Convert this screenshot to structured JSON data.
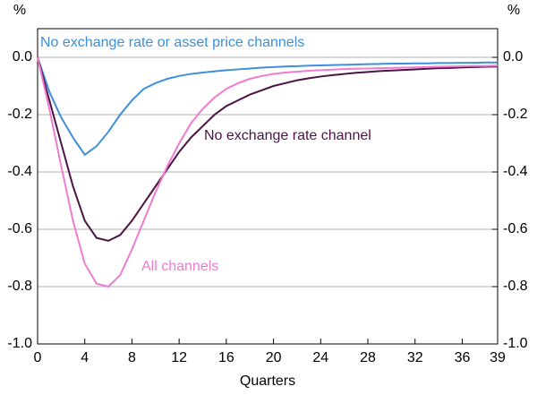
{
  "chart_data": {
    "type": "line",
    "xlabel": "Quarters",
    "ylabel": "%",
    "y2label": "%",
    "x": [
      0,
      1,
      2,
      3,
      4,
      5,
      6,
      7,
      8,
      9,
      10,
      11,
      12,
      13,
      14,
      15,
      16,
      17,
      18,
      19,
      20,
      21,
      22,
      23,
      24,
      25,
      26,
      27,
      28,
      29,
      30,
      31,
      32,
      33,
      34,
      35,
      36,
      37,
      38,
      39
    ],
    "xlim": [
      0,
      39
    ],
    "xticks": [
      0,
      4,
      8,
      12,
      16,
      20,
      24,
      28,
      32,
      36,
      39
    ],
    "ylim": [
      -1.0,
      0.1
    ],
    "yticks": [
      {
        "value": 0,
        "label": "0.0"
      },
      {
        "value": -0.2,
        "label": "-0.2"
      },
      {
        "value": -0.4,
        "label": "-0.4"
      },
      {
        "value": -0.6,
        "label": "-0.6"
      },
      {
        "value": -0.8,
        "label": "-0.8"
      },
      {
        "value": -1.0,
        "label": "-1.0"
      }
    ],
    "y2lim": [
      -1.0,
      0.1
    ],
    "y2ticks": [
      {
        "value": 0,
        "label": "0.0"
      },
      {
        "value": -0.2,
        "label": "-0.2"
      },
      {
        "value": -0.4,
        "label": "-0.4"
      },
      {
        "value": -0.6,
        "label": "-0.6"
      },
      {
        "value": -0.8,
        "label": "-0.8"
      },
      {
        "value": -1.0,
        "label": "-1.0"
      }
    ],
    "grid": true,
    "series": [
      {
        "name": "No exchange rate or asset price channels",
        "color": "#3d8fdb",
        "values": [
          0,
          -0.12,
          -0.21,
          -0.28,
          -0.34,
          -0.31,
          -0.26,
          -0.2,
          -0.15,
          -0.11,
          -0.09,
          -0.075,
          -0.065,
          -0.058,
          -0.053,
          -0.049,
          -0.045,
          -0.042,
          -0.039,
          -0.036,
          -0.034,
          -0.032,
          -0.031,
          -0.029,
          -0.028,
          -0.027,
          -0.026,
          -0.025,
          -0.024,
          -0.023,
          -0.022,
          -0.022,
          -0.021,
          -0.021,
          -0.02,
          -0.02,
          -0.019,
          -0.019,
          -0.018,
          -0.018
        ]
      },
      {
        "name": "No exchange rate channel",
        "color": "#4b1445",
        "values": [
          0,
          -0.15,
          -0.3,
          -0.45,
          -0.57,
          -0.63,
          -0.64,
          -0.62,
          -0.57,
          -0.51,
          -0.45,
          -0.39,
          -0.33,
          -0.28,
          -0.24,
          -0.2,
          -0.17,
          -0.15,
          -0.13,
          -0.115,
          -0.1,
          -0.09,
          -0.08,
          -0.073,
          -0.067,
          -0.062,
          -0.058,
          -0.054,
          -0.051,
          -0.048,
          -0.046,
          -0.044,
          -0.042,
          -0.04,
          -0.038,
          -0.037,
          -0.035,
          -0.034,
          -0.033,
          -0.032
        ]
      },
      {
        "name": "All channels",
        "color": "#f07bd0",
        "values": [
          0,
          -0.18,
          -0.38,
          -0.57,
          -0.72,
          -0.79,
          -0.8,
          -0.76,
          -0.67,
          -0.57,
          -0.47,
          -0.38,
          -0.3,
          -0.23,
          -0.18,
          -0.14,
          -0.11,
          -0.09,
          -0.075,
          -0.065,
          -0.058,
          -0.053,
          -0.05,
          -0.047,
          -0.045,
          -0.043,
          -0.041,
          -0.04,
          -0.039,
          -0.038,
          -0.037,
          -0.036,
          -0.035,
          -0.034,
          -0.033,
          -0.032,
          -0.031,
          -0.03,
          -0.03,
          -0.029
        ]
      }
    ]
  }
}
